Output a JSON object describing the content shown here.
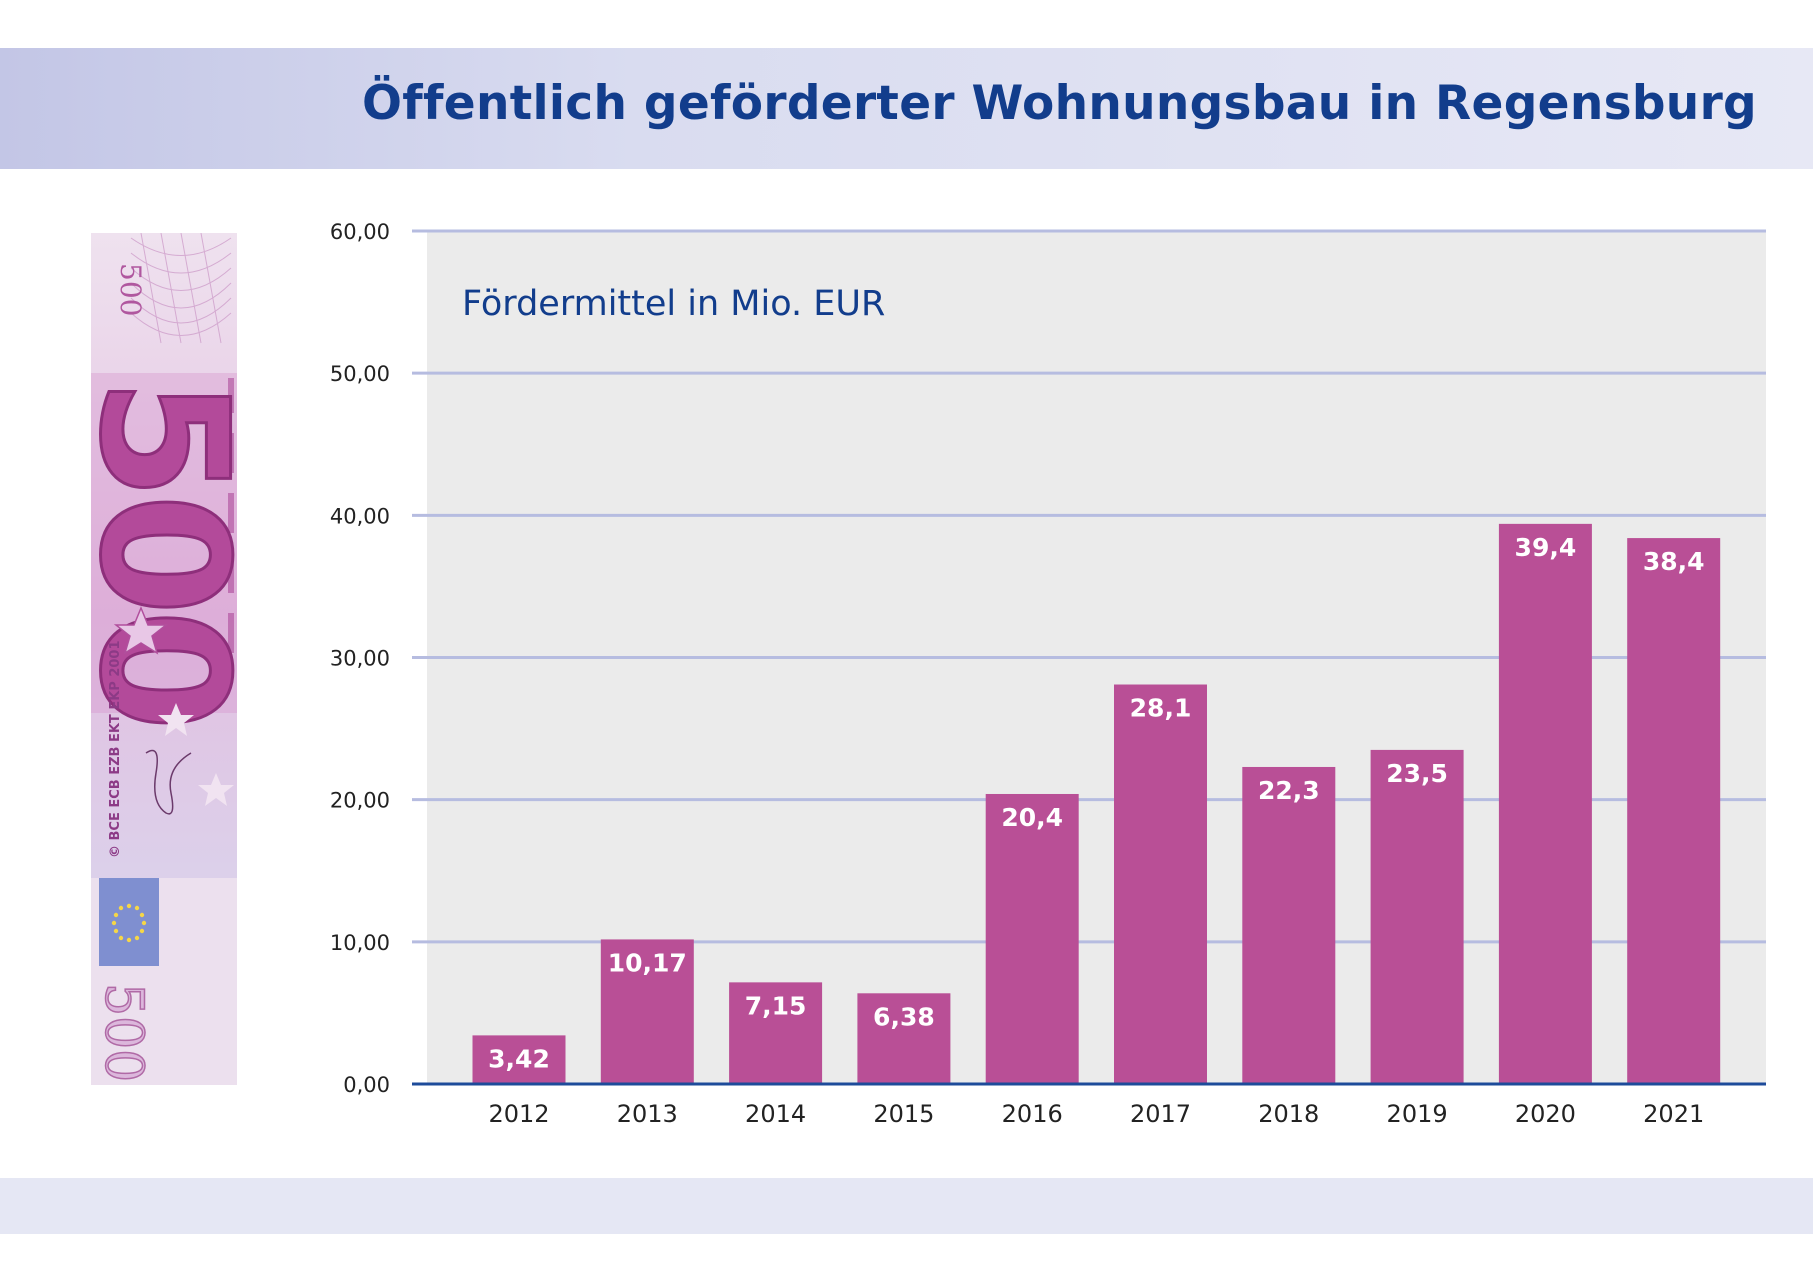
{
  "header": {
    "title": "Öffentlich geförderter Wohnungsbau in Regensburg"
  },
  "banknote": {
    "denomination": "500",
    "issuer_text": "© BCE ECB EZB EKT EKP 2001",
    "icon": "euro-banknote-500-icon"
  },
  "colors": {
    "bar": "#b94f96",
    "title": "#123d8c",
    "plot_background": "#ebebeb",
    "gridline": "#b6bce0",
    "baseline": "#1d4b9a"
  },
  "chart_data": {
    "type": "bar",
    "title": "Öffentlich geförderter Wohnungsbau in Regensburg",
    "ylabel": "Fördermittel in Mio. EUR",
    "xlabel": "",
    "categories": [
      "2012",
      "2013",
      "2014",
      "2015",
      "2016",
      "2017",
      "2018",
      "2019",
      "2020",
      "2021"
    ],
    "values": [
      3.42,
      10.17,
      7.15,
      6.38,
      20.4,
      28.1,
      22.3,
      23.5,
      39.4,
      38.4
    ],
    "value_labels": [
      "3,42",
      "10,17",
      "7,15",
      "6,38",
      "20,4",
      "28,1",
      "22,3",
      "23,5",
      "39,4",
      "38,4"
    ],
    "ylim": [
      0,
      60
    ],
    "yticks": [
      0,
      10,
      20,
      30,
      40,
      50,
      60
    ],
    "ytick_labels": [
      "0,00",
      "10,00",
      "20,00",
      "30,00",
      "40,00",
      "50,00",
      "60,00"
    ],
    "grid": "horizontal",
    "legend": "none"
  }
}
